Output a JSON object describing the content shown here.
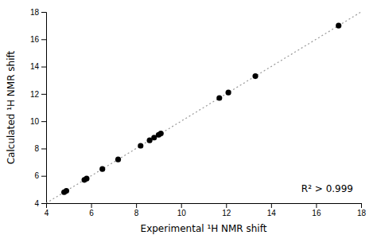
{
  "chart_data": {
    "type": "scatter",
    "x": [
      4.8,
      4.9,
      5.7,
      5.8,
      6.5,
      7.2,
      8.2,
      8.6,
      8.8,
      9.0,
      9.1,
      11.7,
      12.1,
      13.3,
      17.0
    ],
    "values": [
      4.8,
      4.9,
      5.7,
      5.8,
      6.5,
      7.2,
      8.2,
      8.6,
      8.8,
      9.0,
      9.1,
      11.7,
      12.1,
      13.3,
      17.0
    ],
    "color": "#000000",
    "marker": "circle",
    "xlim": [
      4,
      18
    ],
    "ylim": [
      4,
      18
    ],
    "xticks": [
      4,
      6,
      8,
      10,
      12,
      14,
      16,
      18
    ],
    "yticks": [
      4,
      6,
      8,
      10,
      12,
      14,
      16,
      18
    ],
    "xlabel": "Experimental ¹H NMR shift",
    "ylabel": "Calculated ¹H NMR shift",
    "annotation": "R² > 0.999"
  }
}
